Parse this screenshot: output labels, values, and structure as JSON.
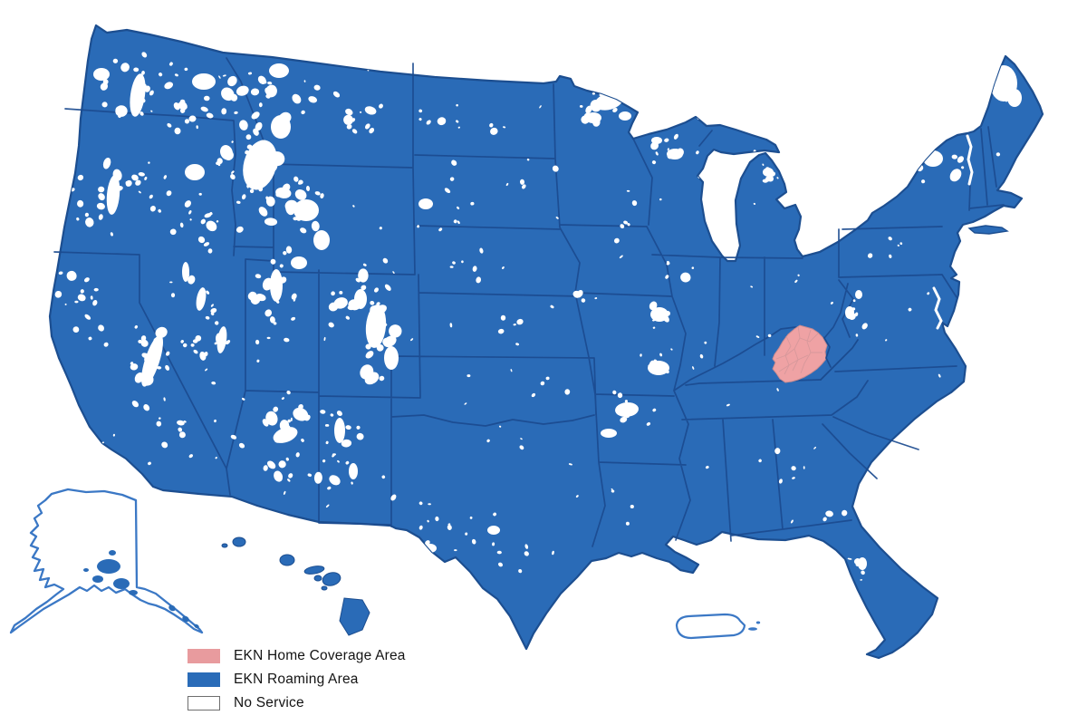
{
  "legend": {
    "items": [
      {
        "id": "home",
        "label": "EKN Home Coverage Area",
        "color": "#E89B9E",
        "swatch_style": "background:#E89B9E"
      },
      {
        "id": "roaming",
        "label": "EKN Roaming Area",
        "color": "#2A6CB8",
        "swatch_style": "background:#2A6CB8"
      },
      {
        "id": "none",
        "label": "No Service",
        "color": "#FFFFFF",
        "swatch_style": "background:#FFFFFF;border:1px solid #6e6e6e"
      }
    ]
  },
  "map": {
    "colors": {
      "land_fill": "#2A6BB7",
      "land_edge": "#1C4E90",
      "state_line": "#1B4B8F",
      "home_fill": "#EFA2A4",
      "home_line": "#D7989B",
      "no_service": "#FFFFFF",
      "outline_only_stroke": "#3B78C5"
    }
  }
}
